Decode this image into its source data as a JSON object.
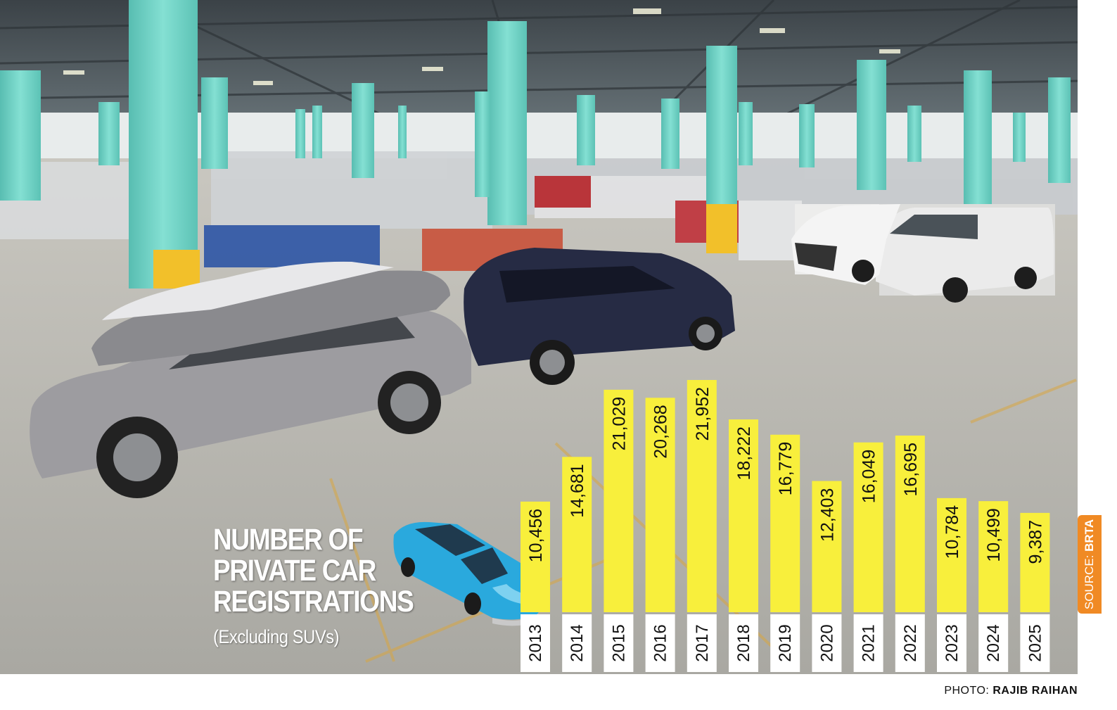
{
  "title_lines": [
    "NUMBER OF",
    "PRIVATE CAR",
    "REGISTRATIONS"
  ],
  "subtitle": "(Excluding SUVs)",
  "source": {
    "prefix": "SOURCE: ",
    "name": "BRTA"
  },
  "credit": {
    "prefix": "PHOTO: ",
    "name": "RAJIB RAIHAN"
  },
  "colors": {
    "bar": "#f8ef3c",
    "year_box": "#ffffff",
    "source_tab": "#f08a24",
    "pillar": "#6fd0c4",
    "car_icon": "#2aa9dd"
  },
  "chart_data": {
    "type": "bar",
    "title": "NUMBER OF PRIVATE CAR REGISTRATIONS",
    "subtitle": "(Excluding SUVs)",
    "categories": [
      "2013",
      "2014",
      "2015",
      "2016",
      "2017",
      "2018",
      "2019",
      "2020",
      "2021",
      "2022",
      "2023",
      "2024",
      "2025"
    ],
    "values": [
      10456,
      14681,
      21029,
      20268,
      21952,
      18222,
      16779,
      12403,
      16049,
      16695,
      10784,
      10499,
      9387
    ],
    "value_labels": [
      "10,456",
      "14,681",
      "21,029",
      "20,268",
      "21,952",
      "18,222",
      "16,779",
      "12,403",
      "16,049",
      "16,695",
      "10,784",
      "10,499",
      "9,387"
    ],
    "xlabel": "",
    "ylabel": "",
    "ylim": [
      0,
      25000
    ],
    "grid": false,
    "legend": "none"
  }
}
